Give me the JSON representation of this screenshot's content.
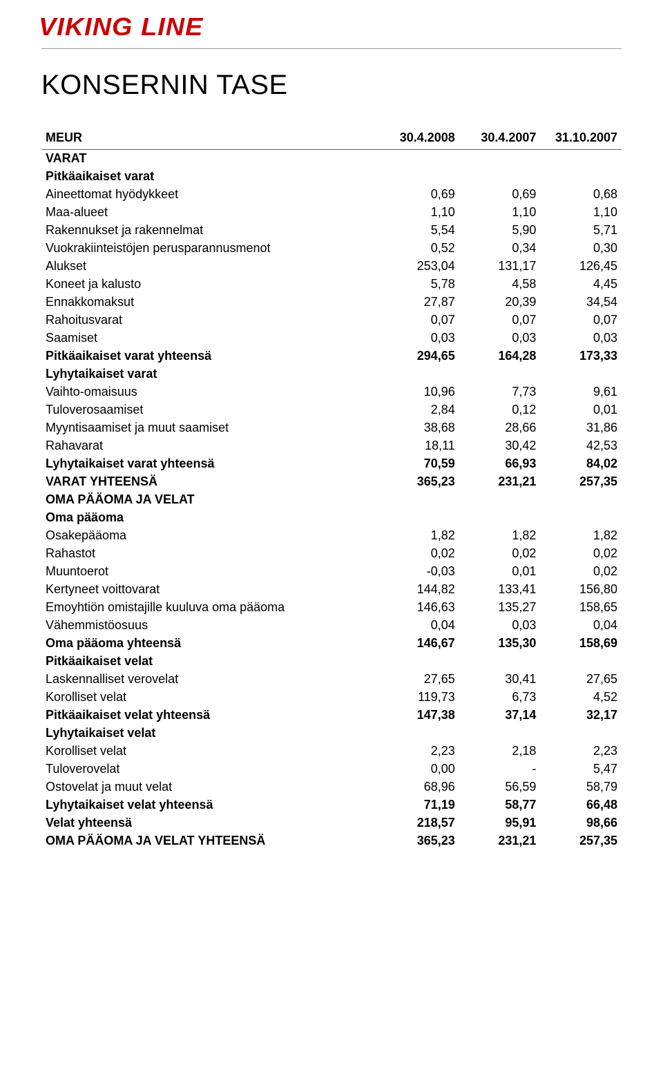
{
  "brand": "VIKING LINE",
  "title": "KONSERNIN TASE",
  "colors": {
    "brand": "#cc0000",
    "text": "#000000",
    "rule": "#999999",
    "underline": "#666666",
    "background": "#ffffff"
  },
  "typography": {
    "logo_fontsize": 36,
    "title_fontsize": 40,
    "body_fontsize": 18,
    "font_family": "Arial"
  },
  "columns": {
    "label": "MEUR",
    "c1": "30.4.2008",
    "c2": "30.4.2007",
    "c3": "31.10.2007"
  },
  "sections": [
    {
      "heading": "VARAT",
      "groups": [
        {
          "heading": "Pitkäaikaiset varat",
          "rows": [
            {
              "l": "Aineettomat hyödykkeet",
              "v": [
                "0,69",
                "0,69",
                "0,68"
              ]
            },
            {
              "l": "Maa-alueet",
              "v": [
                "1,10",
                "1,10",
                "1,10"
              ]
            },
            {
              "l": "Rakennukset ja rakennelmat",
              "v": [
                "5,54",
                "5,90",
                "5,71"
              ]
            },
            {
              "l": "Vuokrakiinteistöjen perusparannusmenot",
              "v": [
                "0,52",
                "0,34",
                "0,30"
              ]
            },
            {
              "l": "Alukset",
              "v": [
                "253,04",
                "131,17",
                "126,45"
              ]
            },
            {
              "l": "Koneet ja kalusto",
              "v": [
                "5,78",
                "4,58",
                "4,45"
              ]
            },
            {
              "l": "Ennakkomaksut",
              "v": [
                "27,87",
                "20,39",
                "34,54"
              ]
            },
            {
              "l": "Rahoitusvarat",
              "v": [
                "0,07",
                "0,07",
                "0,07"
              ]
            },
            {
              "l": "Saamiset",
              "v": [
                "0,03",
                "0,03",
                "0,03"
              ]
            }
          ],
          "total": {
            "l": "Pitkäaikaiset varat yhteensä",
            "v": [
              "294,65",
              "164,28",
              "173,33"
            ]
          }
        },
        {
          "heading": "Lyhytaikaiset varat",
          "rows": [
            {
              "l": "Vaihto-omaisuus",
              "v": [
                "10,96",
                "7,73",
                "9,61"
              ]
            },
            {
              "l": "Tuloverosaamiset",
              "v": [
                "2,84",
                "0,12",
                "0,01"
              ]
            },
            {
              "l": "Myyntisaamiset ja muut saamiset",
              "v": [
                "38,68",
                "28,66",
                "31,86"
              ]
            },
            {
              "l": "Rahavarat",
              "v": [
                "18,11",
                "30,42",
                "42,53"
              ]
            }
          ],
          "total": {
            "l": "Lyhytaikaiset varat yhteensä",
            "v": [
              "70,59",
              "66,93",
              "84,02"
            ]
          }
        }
      ],
      "grand_total": {
        "l": "VARAT YHTEENSÄ",
        "v": [
          "365,23",
          "231,21",
          "257,35"
        ]
      }
    },
    {
      "heading": "OMA PÄÄOMA JA VELAT",
      "groups": [
        {
          "heading": "Oma pääoma",
          "rows": [
            {
              "l": "Osakepääoma",
              "v": [
                "1,82",
                "1,82",
                "1,82"
              ]
            },
            {
              "l": "Rahastot",
              "v": [
                "0,02",
                "0,02",
                "0,02"
              ]
            },
            {
              "l": "Muuntoerot",
              "v": [
                "-0,03",
                "0,01",
                "0,02"
              ]
            },
            {
              "l": "Kertyneet voittovarat",
              "v": [
                "144,82",
                "133,41",
                "156,80"
              ]
            },
            {
              "l": "Emoyhtiön omistajille kuuluva oma pääoma",
              "v": [
                "146,63",
                "135,27",
                "158,65"
              ]
            }
          ]
        }
      ],
      "standalone_rows": [
        {
          "l": "Vähemmistöosuus",
          "v": [
            "0,04",
            "0,03",
            "0,04"
          ],
          "gap": "tight"
        },
        {
          "l": "Oma pääoma yhteensä",
          "v": [
            "146,67",
            "135,30",
            "158,69"
          ],
          "bold": true,
          "gap": "tight"
        }
      ],
      "groups2": [
        {
          "heading": "Pitkäaikaiset velat",
          "rows": [
            {
              "l": "Laskennalliset verovelat",
              "v": [
                "27,65",
                "30,41",
                "27,65"
              ]
            },
            {
              "l": "Korolliset velat",
              "v": [
                "119,73",
                "6,73",
                "4,52"
              ]
            }
          ],
          "total": {
            "l": "Pitkäaikaiset velat yhteensä",
            "v": [
              "147,38",
              "37,14",
              "32,17"
            ]
          }
        },
        {
          "heading": "Lyhytaikaiset velat",
          "rows": [
            {
              "l": "Korolliset velat",
              "v": [
                "2,23",
                "2,18",
                "2,23"
              ]
            },
            {
              "l": "Tuloverovelat",
              "v": [
                "0,00",
                "-",
                "5,47"
              ]
            },
            {
              "l": "Ostovelat ja muut velat",
              "v": [
                "68,96",
                "56,59",
                "58,79"
              ]
            }
          ],
          "total": {
            "l": "Lyhytaikaiset velat yhteensä",
            "v": [
              "71,19",
              "58,77",
              "66,48"
            ]
          }
        }
      ],
      "footer_rows": [
        {
          "l": "Velat yhteensä",
          "v": [
            "218,57",
            "95,91",
            "98,66"
          ],
          "bold": true,
          "gap": "tight"
        },
        {
          "l": "OMA PÄÄOMA JA VELAT YHTEENSÄ",
          "v": [
            "365,23",
            "231,21",
            "257,35"
          ],
          "bold": true,
          "gap": "tight"
        }
      ]
    }
  ]
}
